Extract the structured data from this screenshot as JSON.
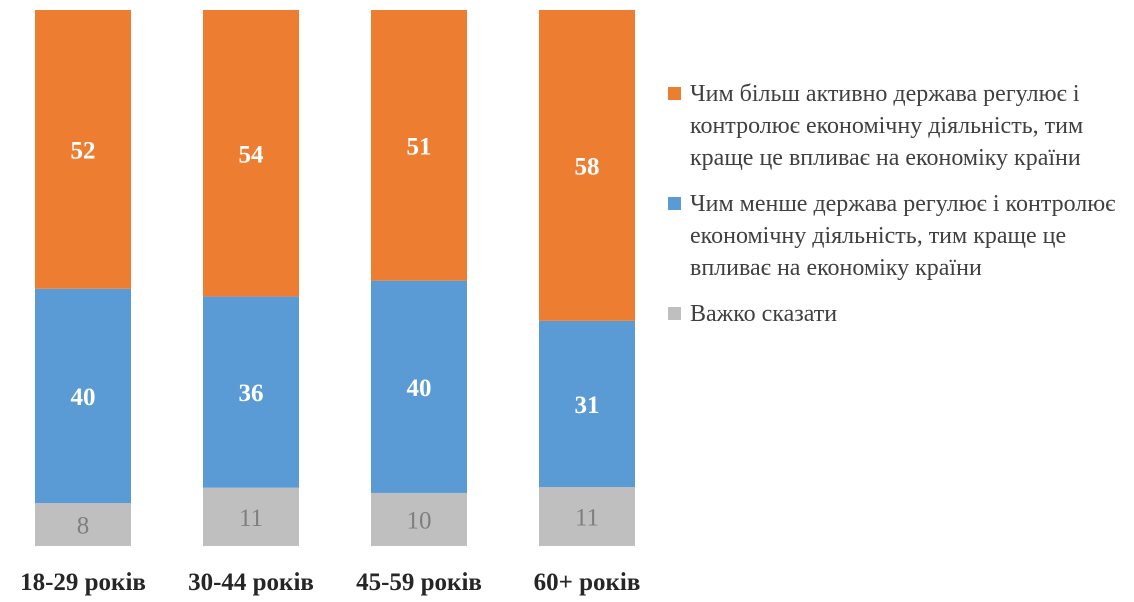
{
  "chart_data": {
    "type": "bar",
    "stacked": true,
    "categories": [
      "18-29 років",
      "30-44 років",
      "45-59 років",
      "60+ років"
    ],
    "series": [
      {
        "name": "Важко сказати",
        "values": [
          8,
          11,
          10,
          11
        ],
        "color": "#BFBFBF",
        "label_color": "#7F7F7F"
      },
      {
        "name": "Чим менше держава регулює і контролює економічну діяльність, тим краще це впливає на економіку країни",
        "values": [
          40,
          36,
          40,
          31
        ],
        "color": "#5B9BD5",
        "label_color": "#FFFFFF"
      },
      {
        "name": "Чим більш активно держава регулює і контролює економічну діяльність, тим краще це впливає на економіку країни",
        "values": [
          52,
          54,
          51,
          58
        ],
        "color": "#ED7D31",
        "label_color": "#FFFFFF"
      }
    ],
    "legend_order": [
      2,
      1,
      0
    ],
    "legend_position": "right",
    "ylim": [
      0,
      100
    ],
    "grid": false
  }
}
